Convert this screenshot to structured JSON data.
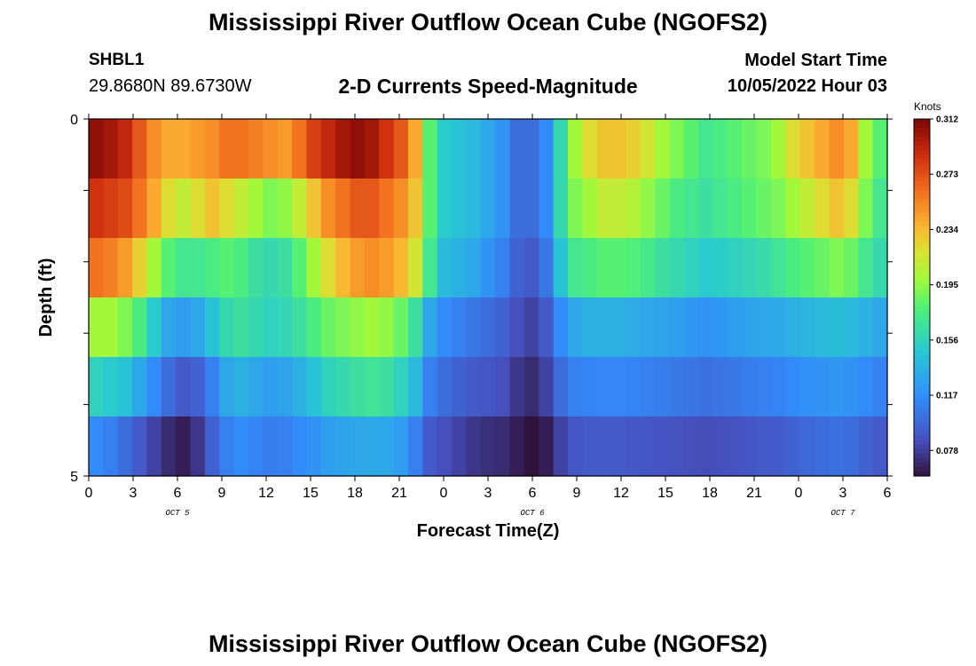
{
  "header": {
    "title": "Mississippi River Outflow Ocean Cube (NGOFS2)",
    "station": "SHBL1",
    "coordinates": "29.8680N  89.6730W",
    "subtitle": "2-D Currents Speed-Magnitude",
    "model_start_label": "Model Start Time",
    "model_start_value": "10/05/2022 Hour 03"
  },
  "footer": {
    "title": "Mississippi River Outflow Ocean Cube (NGOFS2)"
  },
  "chart_data": {
    "type": "heatmap",
    "xlabel": "Forecast Time(Z)",
    "ylabel": "Depth (ft)",
    "x_tick_labels": [
      "0",
      "3",
      "6",
      "9",
      "12",
      "15",
      "18",
      "21",
      "0",
      "3",
      "6",
      "9",
      "12",
      "15",
      "18",
      "21",
      "0",
      "3",
      "6"
    ],
    "y_tick_labels": [
      "0",
      "5"
    ],
    "date_labels": [
      {
        "text": "OCT 5",
        "hour_index": 6
      },
      {
        "text": "OCT 6",
        "hour_index": 30
      },
      {
        "text": "OCT 7",
        "hour_index": 51
      }
    ],
    "x_range_hours": [
      0,
      54
    ],
    "depth_range_ft": [
      0,
      5
    ],
    "colorbar": {
      "units": "Knots",
      "tick_labels": [
        "0.312",
        "0.273",
        "0.234",
        "0.195",
        "0.156",
        "0.117",
        "0.078"
      ],
      "range": [
        0.06,
        0.312
      ]
    },
    "rows": [
      {
        "depth": "layer-1",
        "values": [
          0.305,
          0.3,
          0.29,
          0.27,
          0.25,
          0.24,
          0.24,
          0.245,
          0.25,
          0.26,
          0.26,
          0.255,
          0.25,
          0.245,
          0.26,
          0.28,
          0.29,
          0.3,
          0.305,
          0.3,
          0.285,
          0.27,
          0.24,
          0.18,
          0.15,
          0.145,
          0.14,
          0.13,
          0.12,
          0.1,
          0.1,
          0.115,
          0.16,
          0.2,
          0.22,
          0.23,
          0.23,
          0.225,
          0.215,
          0.2,
          0.19,
          0.18,
          0.17,
          0.175,
          0.18,
          0.185,
          0.19,
          0.2,
          0.22,
          0.23,
          0.24,
          0.25,
          0.24,
          0.2,
          0.18
        ]
      },
      {
        "depth": "layer-2",
        "values": [
          0.285,
          0.28,
          0.275,
          0.26,
          0.24,
          0.22,
          0.21,
          0.22,
          0.23,
          0.22,
          0.21,
          0.2,
          0.19,
          0.195,
          0.21,
          0.23,
          0.25,
          0.26,
          0.27,
          0.27,
          0.26,
          0.25,
          0.23,
          0.18,
          0.15,
          0.145,
          0.14,
          0.13,
          0.12,
          0.1,
          0.1,
          0.115,
          0.16,
          0.19,
          0.2,
          0.21,
          0.21,
          0.205,
          0.195,
          0.185,
          0.175,
          0.17,
          0.165,
          0.17,
          0.175,
          0.18,
          0.185,
          0.19,
          0.2,
          0.21,
          0.22,
          0.23,
          0.22,
          0.19,
          0.17
        ]
      },
      {
        "depth": "layer-3",
        "values": [
          0.26,
          0.255,
          0.245,
          0.225,
          0.2,
          0.18,
          0.17,
          0.17,
          0.175,
          0.18,
          0.175,
          0.165,
          0.16,
          0.165,
          0.18,
          0.2,
          0.22,
          0.235,
          0.245,
          0.25,
          0.245,
          0.235,
          0.215,
          0.17,
          0.14,
          0.135,
          0.13,
          0.12,
          0.11,
          0.095,
          0.09,
          0.105,
          0.145,
          0.17,
          0.175,
          0.18,
          0.18,
          0.178,
          0.172,
          0.165,
          0.16,
          0.155,
          0.15,
          0.152,
          0.155,
          0.158,
          0.162,
          0.168,
          0.175,
          0.18,
          0.185,
          0.19,
          0.185,
          0.17,
          0.16
        ]
      },
      {
        "depth": "layer-4",
        "values": [
          0.2,
          0.2,
          0.19,
          0.175,
          0.15,
          0.13,
          0.125,
          0.13,
          0.145,
          0.16,
          0.165,
          0.16,
          0.155,
          0.158,
          0.165,
          0.175,
          0.185,
          0.19,
          0.195,
          0.2,
          0.195,
          0.185,
          0.165,
          0.13,
          0.115,
          0.11,
          0.105,
          0.1,
          0.095,
          0.085,
          0.08,
          0.09,
          0.115,
          0.13,
          0.135,
          0.135,
          0.135,
          0.133,
          0.13,
          0.128,
          0.125,
          0.122,
          0.12,
          0.122,
          0.125,
          0.128,
          0.13,
          0.132,
          0.135,
          0.138,
          0.14,
          0.142,
          0.14,
          0.135,
          0.13
        ]
      },
      {
        "depth": "layer-5",
        "values": [
          0.155,
          0.15,
          0.145,
          0.13,
          0.115,
          0.1,
          0.09,
          0.095,
          0.11,
          0.13,
          0.135,
          0.13,
          0.125,
          0.128,
          0.135,
          0.145,
          0.155,
          0.16,
          0.165,
          0.168,
          0.165,
          0.155,
          0.14,
          0.11,
          0.1,
          0.095,
          0.09,
          0.088,
          0.085,
          0.075,
          0.07,
          0.08,
          0.1,
          0.11,
          0.112,
          0.113,
          0.113,
          0.112,
          0.11,
          0.108,
          0.106,
          0.104,
          0.102,
          0.104,
          0.106,
          0.108,
          0.11,
          0.112,
          0.115,
          0.118,
          0.12,
          0.122,
          0.12,
          0.115,
          0.11
        ]
      },
      {
        "depth": "layer-6",
        "values": [
          0.115,
          0.11,
          0.1,
          0.09,
          0.08,
          0.07,
          0.065,
          0.075,
          0.095,
          0.11,
          0.115,
          0.112,
          0.108,
          0.11,
          0.115,
          0.12,
          0.125,
          0.128,
          0.13,
          0.132,
          0.13,
          0.125,
          0.11,
          0.09,
          0.085,
          0.08,
          0.075,
          0.072,
          0.07,
          0.065,
          0.06,
          0.065,
          0.08,
          0.088,
          0.09,
          0.09,
          0.09,
          0.089,
          0.088,
          0.087,
          0.086,
          0.085,
          0.084,
          0.085,
          0.086,
          0.088,
          0.09,
          0.092,
          0.095,
          0.098,
          0.1,
          0.102,
          0.1,
          0.095,
          0.09
        ]
      }
    ]
  }
}
